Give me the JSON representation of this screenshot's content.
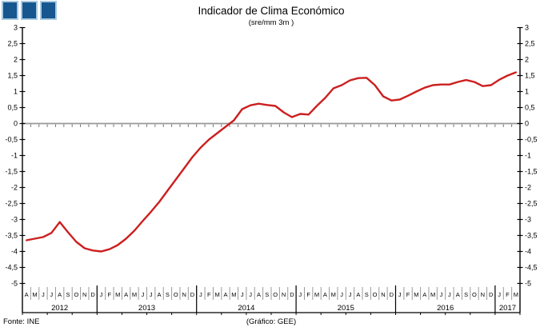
{
  "header": {
    "title": "Indicador de Clima Económico",
    "subtitle": "(sre/mm 3m )"
  },
  "logo": {
    "square_count": 3
  },
  "footer": {
    "source": "Fonte: INE",
    "credit": "(Gráfico: GEE)"
  },
  "colors": {
    "line": "#cc1f1f",
    "zero_line": "#999999",
    "axis": "#000000",
    "month_separator": "#9a9a9a",
    "logo_square_fill": "#17568f",
    "logo_square_border": "#a9cadf"
  },
  "chart_data": {
    "type": "line",
    "title": "Indicador de Clima Económico",
    "subtitle": "(sre/mm 3m )",
    "xlabel": "",
    "ylabel": "",
    "ylim": [
      -5,
      3
    ],
    "ytick_step": 0.5,
    "ytick_labels": [
      "3",
      "2,5",
      "2",
      "1,5",
      "1",
      "0,5",
      "0",
      "-0,5",
      "-1",
      "-1,5",
      "-2",
      "-2,5",
      "-3",
      "-3,5",
      "-4",
      "-4,5",
      "-5"
    ],
    "grid": "zero-line-only",
    "legend_position": "none",
    "years": [
      {
        "label": "2012",
        "months": [
          "A",
          "M",
          "J",
          "J",
          "A",
          "S",
          "O",
          "N",
          "D"
        ]
      },
      {
        "label": "2013",
        "months": [
          "J",
          "F",
          "M",
          "A",
          "M",
          "J",
          "J",
          "A",
          "S",
          "O",
          "N",
          "D"
        ]
      },
      {
        "label": "2014",
        "months": [
          "J",
          "F",
          "M",
          "A",
          "M",
          "J",
          "J",
          "A",
          "S",
          "O",
          "N",
          "D"
        ]
      },
      {
        "label": "2015",
        "months": [
          "J",
          "F",
          "M",
          "A",
          "M",
          "J",
          "J",
          "A",
          "S",
          "O",
          "N",
          "D"
        ]
      },
      {
        "label": "2016",
        "months": [
          "J",
          "F",
          "M",
          "A",
          "M",
          "J",
          "J",
          "A",
          "S",
          "O",
          "N",
          "D"
        ]
      },
      {
        "label": "2017",
        "months": [
          "J",
          "F",
          "M"
        ]
      }
    ],
    "series": [
      {
        "name": "Indicador de Clima Económico",
        "values": [
          -3.65,
          -3.6,
          -3.55,
          -3.42,
          -3.08,
          -3.4,
          -3.7,
          -3.9,
          -3.97,
          -4.0,
          -3.93,
          -3.8,
          -3.6,
          -3.35,
          -3.05,
          -2.76,
          -2.45,
          -2.1,
          -1.75,
          -1.4,
          -1.05,
          -0.75,
          -0.5,
          -0.3,
          -0.1,
          0.1,
          0.45,
          0.57,
          0.62,
          0.58,
          0.55,
          0.35,
          0.2,
          0.3,
          0.28,
          0.55,
          0.8,
          1.1,
          1.2,
          1.35,
          1.42,
          1.43,
          1.2,
          0.85,
          0.72,
          0.75,
          0.87,
          1.0,
          1.12,
          1.2,
          1.22,
          1.22,
          1.3,
          1.36,
          1.3,
          1.17,
          1.2,
          1.37,
          1.5,
          1.6
        ]
      }
    ]
  }
}
